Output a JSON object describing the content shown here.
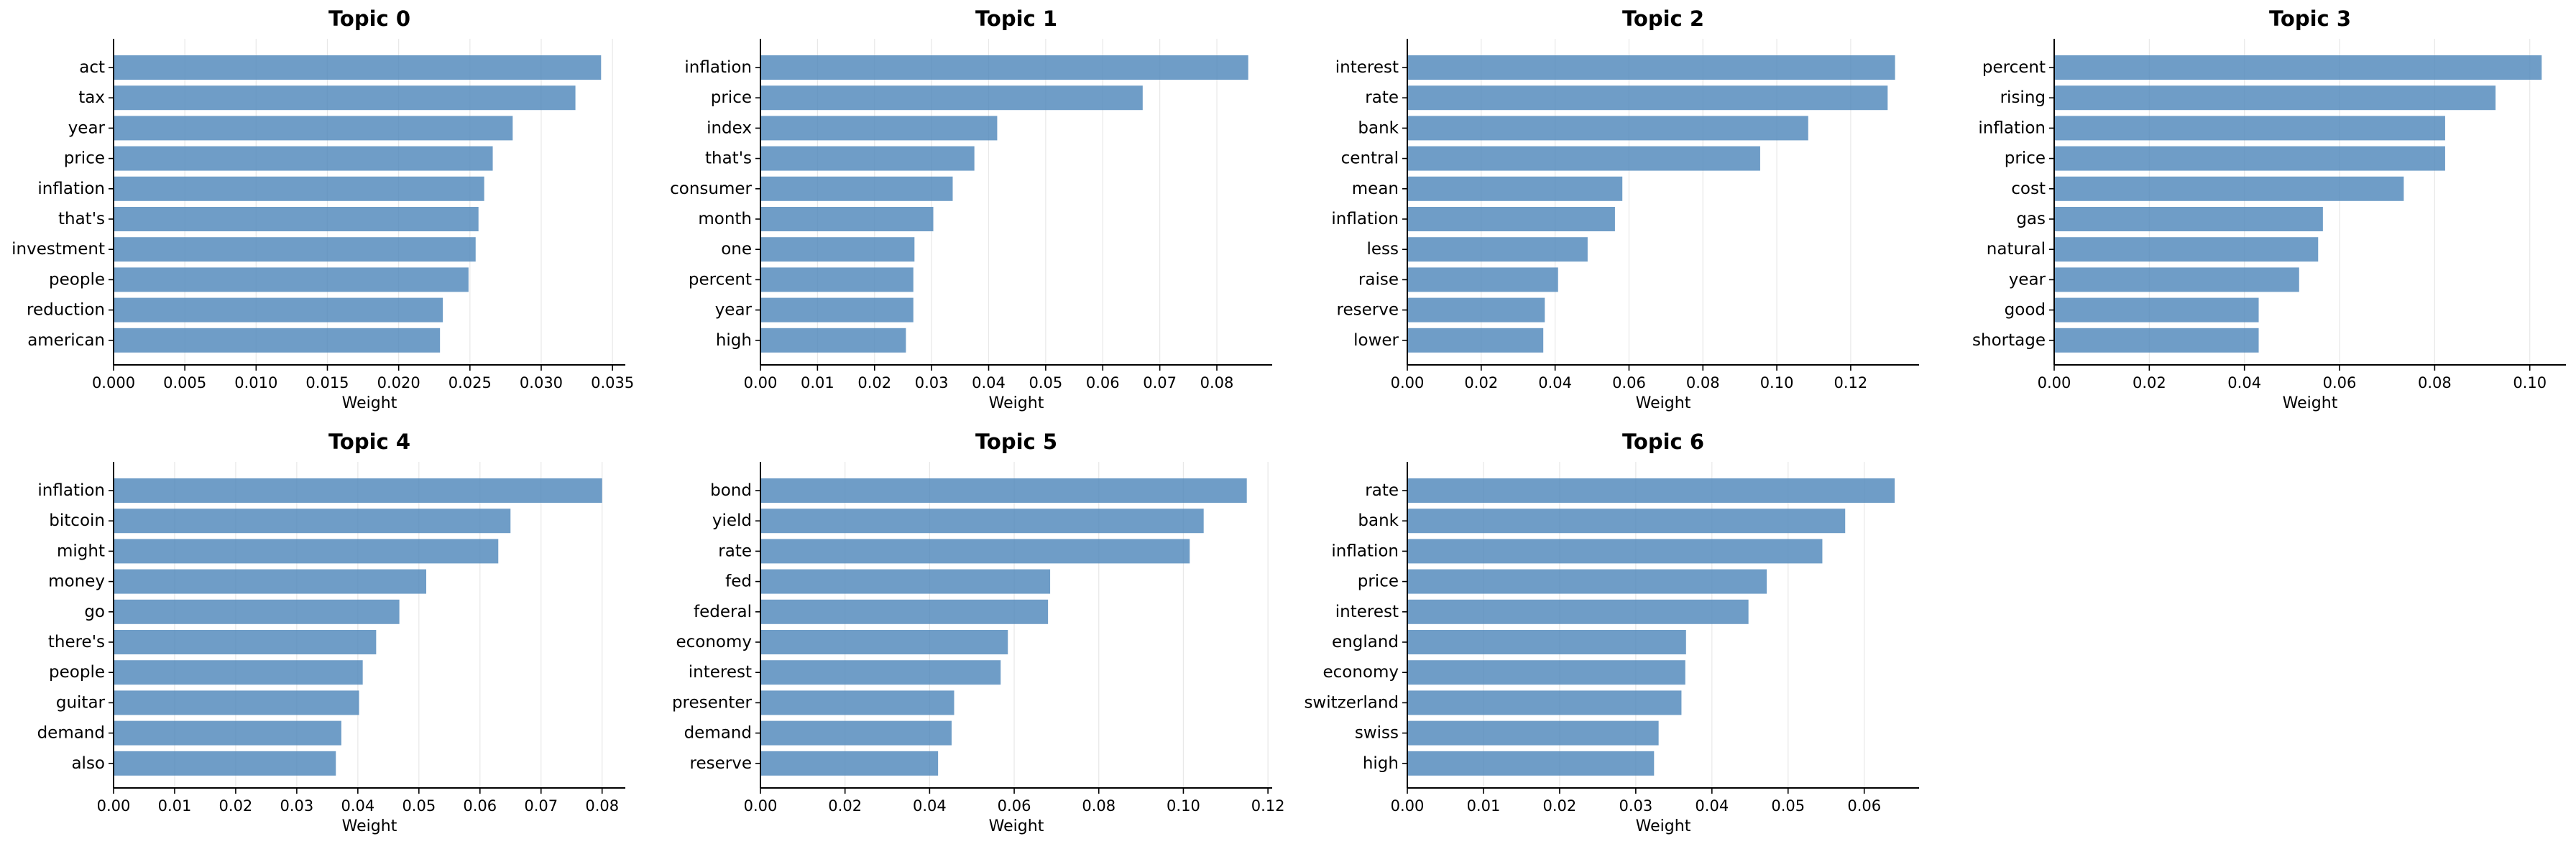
{
  "chart_data": [
    {
      "type": "bar",
      "orientation": "horizontal",
      "title": "Topic 0",
      "xlabel": "Weight",
      "categories": [
        "act",
        "tax",
        "year",
        "price",
        "inflation",
        "that's",
        "investment",
        "people",
        "reduction",
        "american"
      ],
      "values": [
        0.0342,
        0.0324,
        0.028,
        0.0266,
        0.026,
        0.0256,
        0.0254,
        0.0249,
        0.0231,
        0.0229
      ],
      "xlim": [
        0,
        0.0359
      ],
      "xticks": [
        0,
        0.005,
        0.01,
        0.015,
        0.02,
        0.025,
        0.03,
        0.035
      ],
      "xtick_labels": [
        "0.000",
        "0.005",
        "0.010",
        "0.015",
        "0.020",
        "0.025",
        "0.030",
        "0.035"
      ],
      "grid": "x"
    },
    {
      "type": "bar",
      "orientation": "horizontal",
      "title": "Topic 1",
      "xlabel": "Weight",
      "categories": [
        "inflation",
        "price",
        "index",
        "that's",
        "consumer",
        "month",
        "one",
        "percent",
        "year",
        "high"
      ],
      "values": [
        0.0855,
        0.067,
        0.0415,
        0.0375,
        0.0337,
        0.0303,
        0.027,
        0.0268,
        0.0268,
        0.0255
      ],
      "xlim": [
        0,
        0.0897
      ],
      "xticks": [
        0,
        0.01,
        0.02,
        0.03,
        0.04,
        0.05,
        0.06,
        0.07,
        0.08
      ],
      "xtick_labels": [
        "0.00",
        "0.01",
        "0.02",
        "0.03",
        "0.04",
        "0.05",
        "0.06",
        "0.07",
        "0.08"
      ],
      "grid": "x"
    },
    {
      "type": "bar",
      "orientation": "horizontal",
      "title": "Topic 2",
      "xlabel": "Weight",
      "categories": [
        "interest",
        "rate",
        "bank",
        "central",
        "mean",
        "inflation",
        "less",
        "raise",
        "reserve",
        "lower"
      ],
      "values": [
        0.132,
        0.13,
        0.1085,
        0.0955,
        0.0582,
        0.0562,
        0.0488,
        0.0408,
        0.0372,
        0.0368
      ],
      "xlim": [
        0,
        0.1385
      ],
      "xticks": [
        0,
        0.02,
        0.04,
        0.06,
        0.08,
        0.1,
        0.12
      ],
      "xtick_labels": [
        "0.00",
        "0.02",
        "0.04",
        "0.06",
        "0.08",
        "0.10",
        "0.12"
      ],
      "grid": "x"
    },
    {
      "type": "bar",
      "orientation": "horizontal",
      "title": "Topic 3",
      "xlabel": "Weight",
      "categories": [
        "percent",
        "rising",
        "inflation",
        "price",
        "cost",
        "gas",
        "natural",
        "year",
        "good",
        "shortage"
      ],
      "values": [
        0.1025,
        0.0928,
        0.0822,
        0.0822,
        0.0735,
        0.0565,
        0.0555,
        0.0515,
        0.043,
        0.043
      ],
      "xlim": [
        0,
        0.1076
      ],
      "xticks": [
        0,
        0.02,
        0.04,
        0.06,
        0.08,
        0.1
      ],
      "xtick_labels": [
        "0.00",
        "0.02",
        "0.04",
        "0.06",
        "0.08",
        "0.10"
      ],
      "grid": "x"
    },
    {
      "type": "bar",
      "orientation": "horizontal",
      "title": "Topic 4",
      "xlabel": "Weight",
      "categories": [
        "inflation",
        "bitcoin",
        "might",
        "money",
        "go",
        "there's",
        "people",
        "guitar",
        "demand",
        "also"
      ],
      "values": [
        0.08,
        0.065,
        0.063,
        0.0512,
        0.0468,
        0.043,
        0.0408,
        0.0402,
        0.0373,
        0.0364
      ],
      "xlim": [
        0,
        0.0838
      ],
      "xticks": [
        0,
        0.01,
        0.02,
        0.03,
        0.04,
        0.05,
        0.06,
        0.07,
        0.08
      ],
      "xtick_labels": [
        "0.00",
        "0.01",
        "0.02",
        "0.03",
        "0.04",
        "0.05",
        "0.06",
        "0.07",
        "0.08"
      ],
      "grid": "x"
    },
    {
      "type": "bar",
      "orientation": "horizontal",
      "title": "Topic 5",
      "xlabel": "Weight",
      "categories": [
        "bond",
        "yield",
        "rate",
        "fed",
        "federal",
        "economy",
        "interest",
        "presenter",
        "demand",
        "reserve"
      ],
      "values": [
        0.115,
        0.1048,
        0.1015,
        0.0685,
        0.068,
        0.0585,
        0.0568,
        0.0458,
        0.0452,
        0.042
      ],
      "xlim": [
        0,
        0.121
      ],
      "xticks": [
        0,
        0.02,
        0.04,
        0.06,
        0.08,
        0.1,
        0.12
      ],
      "xtick_labels": [
        "0.00",
        "0.02",
        "0.04",
        "0.06",
        "0.08",
        "0.10",
        "0.12"
      ],
      "grid": "x"
    },
    {
      "type": "bar",
      "orientation": "horizontal",
      "title": "Topic 6",
      "xlabel": "Weight",
      "categories": [
        "rate",
        "bank",
        "inflation",
        "price",
        "interest",
        "england",
        "economy",
        "switzerland",
        "swiss",
        "high"
      ],
      "values": [
        0.064,
        0.0575,
        0.0545,
        0.0472,
        0.0448,
        0.0366,
        0.0365,
        0.036,
        0.033,
        0.0324
      ],
      "xlim": [
        0,
        0.0672
      ],
      "xticks": [
        0,
        0.01,
        0.02,
        0.03,
        0.04,
        0.05,
        0.06
      ],
      "xtick_labels": [
        "0.00",
        "0.01",
        "0.02",
        "0.03",
        "0.04",
        "0.05",
        "0.06"
      ],
      "grid": "x"
    }
  ],
  "colors": {
    "bar": "#4f88bb",
    "grid": "#e8e8e8",
    "axis": "#000000"
  }
}
